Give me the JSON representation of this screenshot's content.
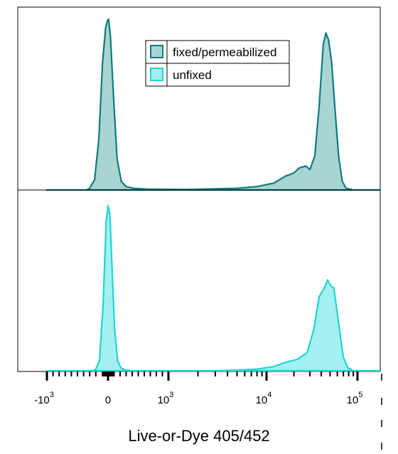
{
  "chart_data": {
    "type": "area",
    "x_scale": "biexponential (flow cytometry)",
    "xlabel": "Live-or-Dye 405/452",
    "x_ticks": [
      {
        "value": -1000,
        "base": "-10",
        "exp": "3"
      },
      {
        "value": 0,
        "base": "0",
        "exp": ""
      },
      {
        "value": 1000,
        "base": "10",
        "exp": "3"
      },
      {
        "value": 10000,
        "base": "10",
        "exp": "4"
      },
      {
        "value": 100000,
        "base": "10",
        "exp": "5"
      }
    ],
    "legend": {
      "position": "top-center",
      "entries": [
        {
          "label": "fixed/permeabilized",
          "fill": "#a8d4d2",
          "stroke": "#0e7c7b"
        },
        {
          "label": "unfixed",
          "fill": "#a3f0f0",
          "stroke": "#22d4d4"
        }
      ]
    },
    "series": [
      {
        "name": "fixed/permeabilized",
        "panel": "top",
        "fill": "#a8d4d2",
        "stroke": "#0e7c7b",
        "points": [
          [
            -1000,
            0
          ],
          [
            -350,
            0
          ],
          [
            -300,
            0.01
          ],
          [
            -220,
            0.06
          ],
          [
            -150,
            0.3
          ],
          [
            -90,
            0.75
          ],
          [
            -40,
            0.95
          ],
          [
            -10,
            0.99
          ],
          [
            10,
            1.0
          ],
          [
            40,
            0.9
          ],
          [
            90,
            0.55
          ],
          [
            150,
            0.18
          ],
          [
            220,
            0.05
          ],
          [
            300,
            0.02
          ],
          [
            420,
            0.01
          ],
          [
            650,
            0.005
          ],
          [
            1500,
            0.003
          ],
          [
            5000,
            0.01
          ],
          [
            8000,
            0.02
          ],
          [
            12000,
            0.04
          ],
          [
            16000,
            0.08
          ],
          [
            20000,
            0.1
          ],
          [
            23000,
            0.13
          ],
          [
            27000,
            0.14
          ],
          [
            30000,
            0.12
          ],
          [
            34000,
            0.2
          ],
          [
            38000,
            0.5
          ],
          [
            42000,
            0.85
          ],
          [
            45000,
            0.92
          ],
          [
            48000,
            0.88
          ],
          [
            52000,
            0.75
          ],
          [
            57000,
            0.45
          ],
          [
            62000,
            0.2
          ],
          [
            68000,
            0.05
          ],
          [
            75000,
            0.01
          ],
          [
            90000,
            0
          ],
          [
            170000,
            0
          ]
        ]
      },
      {
        "name": "unfixed",
        "panel": "bottom",
        "fill": "#a3f0f0",
        "stroke": "#22d4d4",
        "points": [
          [
            -1000,
            0
          ],
          [
            -250,
            0
          ],
          [
            -200,
            0.01
          ],
          [
            -140,
            0.06
          ],
          [
            -80,
            0.4
          ],
          [
            -30,
            0.9
          ],
          [
            0,
            1.0
          ],
          [
            30,
            0.95
          ],
          [
            70,
            0.6
          ],
          [
            110,
            0.25
          ],
          [
            160,
            0.06
          ],
          [
            210,
            0.02
          ],
          [
            280,
            0.005
          ],
          [
            400,
            0
          ],
          [
            3000,
            0
          ],
          [
            5000,
            0.004
          ],
          [
            8000,
            0.01
          ],
          [
            12000,
            0.025
          ],
          [
            16000,
            0.05
          ],
          [
            22000,
            0.07
          ],
          [
            28000,
            0.11
          ],
          [
            33000,
            0.25
          ],
          [
            38000,
            0.45
          ],
          [
            43000,
            0.5
          ],
          [
            47000,
            0.55
          ],
          [
            50000,
            0.52
          ],
          [
            55000,
            0.5
          ],
          [
            60000,
            0.35
          ],
          [
            65000,
            0.2
          ],
          [
            70000,
            0.08
          ],
          [
            78000,
            0.02
          ],
          [
            90000,
            0
          ],
          [
            170000,
            0
          ]
        ]
      }
    ]
  }
}
